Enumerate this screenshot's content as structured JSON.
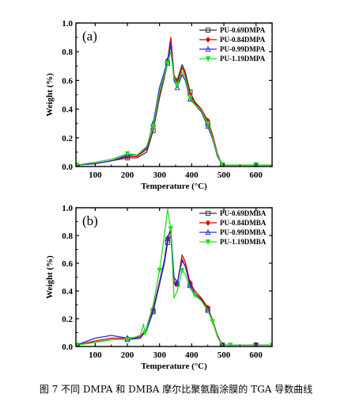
{
  "caption": "图 7 不同 DMPA 和 DMBA 摩尔比聚氨酯涂膜的 TGA 导数曲线",
  "chart_data": [
    {
      "type": "line",
      "panel_label": "(a)",
      "xlabel": "Temperature (°C)",
      "ylabel": "Weight (%)",
      "xlim": [
        40,
        650
      ],
      "ylim": [
        0,
        1.0
      ],
      "xticks": [
        100,
        200,
        300,
        400,
        500,
        600
      ],
      "yticks": [
        0.0,
        0.2,
        0.4,
        0.6,
        0.8,
        1.0
      ],
      "ytick_labels": [
        "0.0",
        "0.2",
        "0.4",
        "0.6",
        "0.8",
        "1.0"
      ],
      "legend_position": "top-right",
      "series": [
        {
          "name": "PU-0.69DMPA",
          "color": "#333333",
          "marker": "square",
          "x": [
            40,
            100,
            150,
            200,
            230,
            260,
            280,
            300,
            315,
            325,
            335,
            345,
            355,
            370,
            380,
            395,
            410,
            430,
            450,
            465,
            480,
            495,
            520,
            560,
            600,
            650
          ],
          "y": [
            0.01,
            0.02,
            0.04,
            0.06,
            0.06,
            0.1,
            0.25,
            0.48,
            0.62,
            0.72,
            0.85,
            0.62,
            0.6,
            0.71,
            0.66,
            0.52,
            0.45,
            0.4,
            0.3,
            0.2,
            0.08,
            0.01,
            0.01,
            0.01,
            0.01,
            0.01
          ]
        },
        {
          "name": "PU-0.84DMPA",
          "color": "#e00000",
          "marker": "diamond",
          "x": [
            40,
            100,
            150,
            200,
            230,
            260,
            280,
            300,
            315,
            325,
            335,
            345,
            355,
            370,
            380,
            395,
            410,
            430,
            450,
            465,
            480,
            495,
            520,
            560,
            600,
            650
          ],
          "y": [
            0.01,
            0.02,
            0.04,
            0.07,
            0.07,
            0.12,
            0.28,
            0.5,
            0.64,
            0.74,
            0.9,
            0.64,
            0.58,
            0.69,
            0.64,
            0.5,
            0.44,
            0.4,
            0.32,
            0.22,
            0.09,
            0.01,
            0.01,
            0.01,
            0.01,
            0.01
          ]
        },
        {
          "name": "PU-0.99DMPA",
          "color": "#2a2adf",
          "marker": "triangle-up",
          "x": [
            40,
            100,
            150,
            200,
            230,
            260,
            280,
            300,
            315,
            325,
            335,
            345,
            355,
            370,
            380,
            395,
            410,
            430,
            450,
            465,
            480,
            495,
            520,
            560,
            600,
            650
          ],
          "y": [
            0.01,
            0.02,
            0.04,
            0.08,
            0.08,
            0.13,
            0.3,
            0.55,
            0.66,
            0.74,
            0.86,
            0.6,
            0.55,
            0.64,
            0.6,
            0.47,
            0.43,
            0.38,
            0.28,
            0.19,
            0.07,
            0.01,
            0.01,
            0.01,
            0.01,
            0.01
          ]
        },
        {
          "name": "PU-1.19DMPA",
          "color": "#22dd22",
          "marker": "triangle-down",
          "x": [
            40,
            100,
            150,
            200,
            230,
            260,
            280,
            300,
            315,
            325,
            335,
            345,
            355,
            370,
            380,
            395,
            410,
            430,
            450,
            465,
            480,
            495,
            520,
            560,
            600,
            650
          ],
          "y": [
            0.01,
            0.03,
            0.05,
            0.09,
            0.08,
            0.14,
            0.28,
            0.52,
            0.64,
            0.72,
            0.8,
            0.62,
            0.57,
            0.66,
            0.62,
            0.48,
            0.43,
            0.39,
            0.3,
            0.2,
            0.08,
            0.01,
            0.01,
            0.01,
            0.01,
            0.01
          ]
        }
      ]
    },
    {
      "type": "line",
      "panel_label": "(b)",
      "xlabel": "Temperature (°C)",
      "ylabel": "Weight (%)",
      "xlim": [
        40,
        650
      ],
      "ylim": [
        0,
        1.0
      ],
      "xticks": [
        100,
        200,
        300,
        400,
        500,
        600
      ],
      "yticks": [
        0.0,
        0.2,
        0.4,
        0.6,
        0.8,
        1.0
      ],
      "ytick_labels": [
        "0.0",
        "0.2",
        "0.4",
        "0.6",
        "0.8",
        "1.0"
      ],
      "legend_position": "top-right",
      "series": [
        {
          "name": "PU-0.69DMBA",
          "color": "#333333",
          "marker": "square",
          "x": [
            40,
            100,
            150,
            200,
            240,
            260,
            280,
            300,
            315,
            325,
            335,
            345,
            355,
            370,
            380,
            395,
            410,
            430,
            450,
            465,
            480,
            495,
            520,
            560,
            600,
            650
          ],
          "y": [
            0.01,
            0.03,
            0.05,
            0.05,
            0.06,
            0.12,
            0.25,
            0.45,
            0.6,
            0.75,
            0.8,
            0.45,
            0.45,
            0.63,
            0.58,
            0.44,
            0.38,
            0.34,
            0.27,
            0.18,
            0.08,
            0.01,
            0.01,
            0.01,
            0.01,
            0.01
          ]
        },
        {
          "name": "PU-0.84DMBA",
          "color": "#e00000",
          "marker": "diamond",
          "x": [
            40,
            100,
            150,
            200,
            240,
            260,
            280,
            300,
            315,
            325,
            335,
            345,
            355,
            370,
            380,
            395,
            410,
            430,
            450,
            465,
            480,
            495,
            520,
            560,
            600,
            650
          ],
          "y": [
            0.01,
            0.04,
            0.06,
            0.06,
            0.07,
            0.13,
            0.27,
            0.47,
            0.62,
            0.78,
            0.83,
            0.47,
            0.45,
            0.66,
            0.61,
            0.46,
            0.4,
            0.35,
            0.28,
            0.19,
            0.08,
            0.01,
            0.01,
            0.01,
            0.01,
            0.01
          ]
        },
        {
          "name": "PU-0.99DMBA",
          "color": "#2a2adf",
          "marker": "triangle-up",
          "x": [
            40,
            100,
            150,
            200,
            240,
            260,
            280,
            300,
            315,
            325,
            335,
            345,
            355,
            370,
            380,
            395,
            410,
            430,
            450,
            465,
            480,
            495,
            520,
            560,
            600,
            650
          ],
          "y": [
            0.01,
            0.06,
            0.08,
            0.06,
            0.06,
            0.12,
            0.26,
            0.46,
            0.62,
            0.78,
            0.85,
            0.5,
            0.46,
            0.62,
            0.58,
            0.44,
            0.38,
            0.33,
            0.26,
            0.18,
            0.07,
            0.01,
            0.01,
            0.01,
            0.01,
            0.01
          ]
        },
        {
          "name": "PU-1.19DMBA",
          "color": "#22dd22",
          "marker": "triangle-down",
          "x": [
            40,
            100,
            150,
            200,
            240,
            250,
            255,
            260,
            280,
            300,
            315,
            325,
            335,
            345,
            355,
            370,
            380,
            395,
            410,
            430,
            450,
            465,
            480,
            495,
            520,
            560,
            600,
            650
          ],
          "y": [
            0.01,
            0.03,
            0.05,
            0.05,
            0.08,
            0.16,
            0.1,
            0.14,
            0.3,
            0.55,
            0.8,
            0.99,
            0.85,
            0.35,
            0.4,
            0.55,
            0.52,
            0.42,
            0.37,
            0.33,
            0.26,
            0.18,
            0.07,
            0.01,
            0.01,
            0.01,
            0.01,
            0.01
          ]
        }
      ]
    }
  ]
}
